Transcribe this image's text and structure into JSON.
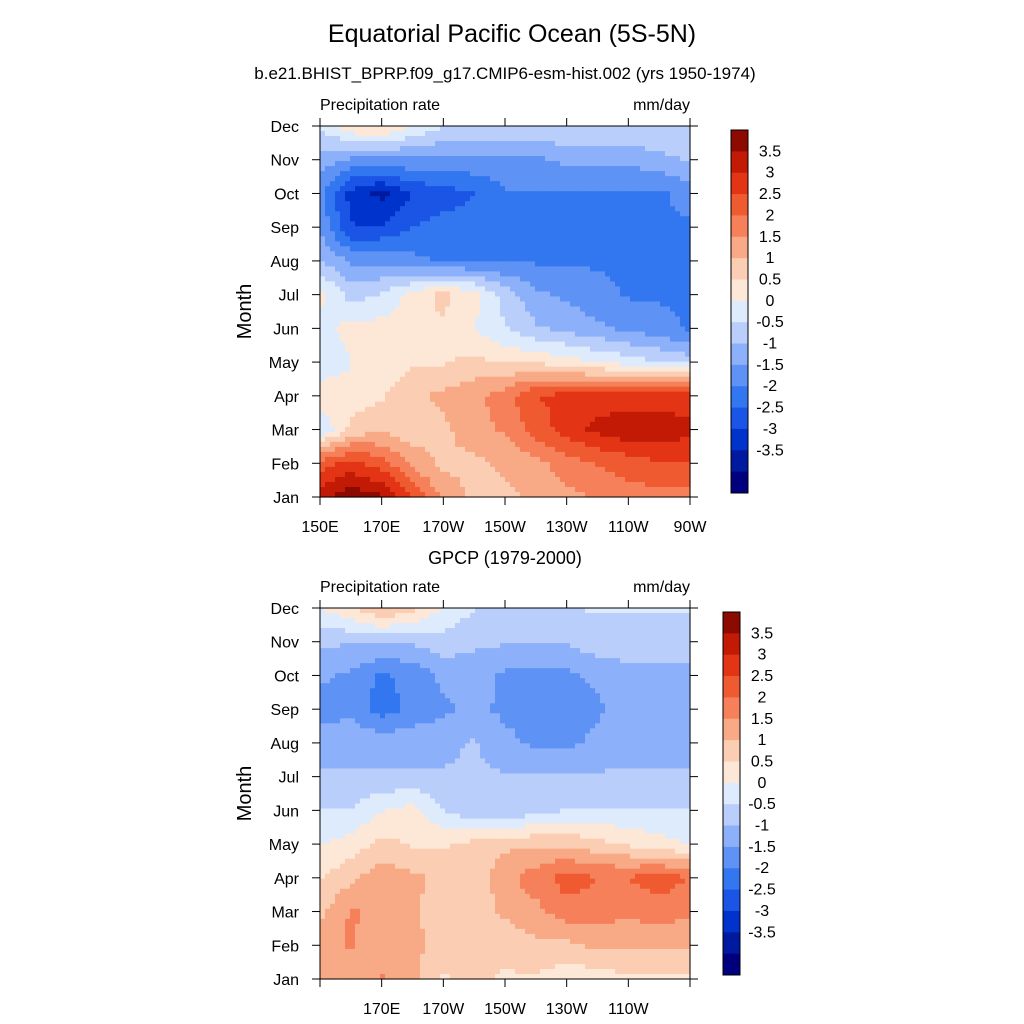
{
  "title": "Equatorial Pacific Ocean (5S-5N)",
  "chart_data": [
    {
      "type": "heatmap",
      "title": "b.e21.BHIST_BPRP.f09_g17.CMIP6-esm-hist.002 (yrs 1950-1974)",
      "variable_label": "Precipitation rate",
      "units_label": "mm/day",
      "ylabel": "Month",
      "xlabel": "",
      "x_ticks": [
        "150E",
        "170E",
        "170W",
        "150W",
        "130W",
        "110W",
        "90W"
      ],
      "y_ticks": [
        "Jan",
        "Feb",
        "Mar",
        "Apr",
        "May",
        "Jun",
        "Jul",
        "Aug",
        "Sep",
        "Oct",
        "Nov",
        "Dec"
      ],
      "colorbar_labels": [
        "3.5",
        "3",
        "2.5",
        "2",
        "1.5",
        "1",
        "0.5",
        "0",
        "-0.5",
        "-1",
        "-1.5",
        "-2",
        "-2.5",
        "-3",
        "-3.5"
      ],
      "x": [
        150,
        160,
        170,
        180,
        190,
        200,
        210,
        220,
        230,
        240,
        250,
        260,
        270
      ],
      "values": [
        [
          3.2,
          3.6,
          3.4,
          2.4,
          1.4,
          1.0,
          1.0,
          1.2,
          1.4,
          1.6,
          1.8,
          1.8,
          1.8
        ],
        [
          2.2,
          2.6,
          2.2,
          1.4,
          1.0,
          1.0,
          1.2,
          1.4,
          1.8,
          2.0,
          2.2,
          2.4,
          2.4
        ],
        [
          -0.2,
          0.8,
          1.0,
          0.8,
          1.0,
          1.4,
          1.6,
          2.2,
          2.6,
          3.0,
          3.2,
          3.2,
          3.0
        ],
        [
          0.6,
          0.4,
          0.6,
          1.0,
          1.2,
          1.4,
          1.8,
          2.4,
          2.6,
          2.6,
          2.6,
          2.6,
          2.6
        ],
        [
          -0.2,
          0.2,
          0.4,
          0.6,
          0.6,
          0.8,
          0.6,
          0.6,
          0.4,
          0.2,
          0.0,
          -0.2,
          -0.4
        ],
        [
          0.0,
          0.4,
          0.4,
          0.6,
          0.6,
          0.2,
          -0.2,
          -0.6,
          -0.8,
          -1.0,
          -1.2,
          -1.4,
          -1.6
        ],
        [
          0.4,
          -0.4,
          -0.2,
          0.4,
          0.8,
          0.4,
          -0.4,
          -1.0,
          -1.2,
          -1.4,
          -1.6,
          -1.6,
          -1.6
        ],
        [
          -0.6,
          -1.2,
          -1.2,
          -1.4,
          -1.6,
          -1.6,
          -1.6,
          -1.6,
          -1.6,
          -1.6,
          -1.6,
          -1.6,
          -1.6
        ],
        [
          -1.2,
          -2.4,
          -2.4,
          -2.0,
          -1.8,
          -1.8,
          -1.6,
          -1.6,
          -1.6,
          -1.6,
          -1.6,
          -1.6,
          -1.6
        ],
        [
          -1.4,
          -2.6,
          -3.0,
          -2.4,
          -2.2,
          -2.0,
          -1.6,
          -1.6,
          -1.6,
          -1.6,
          -1.6,
          -1.6,
          -1.4
        ],
        [
          -0.8,
          -1.2,
          -1.2,
          -1.2,
          -1.2,
          -1.2,
          -1.2,
          -1.2,
          -1.0,
          -1.0,
          -1.0,
          -0.8,
          -0.6
        ],
        [
          -0.2,
          0.6,
          0.8,
          0.2,
          -0.2,
          -0.2,
          -0.2,
          -0.2,
          -0.2,
          -0.2,
          -0.2,
          -0.2,
          -0.2
        ]
      ],
      "clim": [
        -3.75,
        3.75
      ],
      "contour_interval": 0.5
    },
    {
      "type": "heatmap",
      "title": "GPCP (1979-2000)",
      "variable_label": "Precipitation rate",
      "units_label": "mm/day",
      "ylabel": "Month",
      "xlabel": "",
      "x_ticks": [
        "170E",
        "170W",
        "150W",
        "130W",
        "110W"
      ],
      "y_ticks": [
        "Jan",
        "Feb",
        "Mar",
        "Apr",
        "May",
        "Jun",
        "Jul",
        "Aug",
        "Sep",
        "Oct",
        "Nov",
        "Dec"
      ],
      "colorbar_labels": [
        "3.5",
        "3",
        "2.5",
        "2",
        "1.5",
        "1",
        "0.5",
        "0",
        "-0.5",
        "-1",
        "-1.5",
        "-2",
        "-2.5",
        "-3",
        "-3.5"
      ],
      "x": [
        150,
        160,
        170,
        180,
        190,
        200,
        210,
        220,
        230,
        240,
        250,
        260,
        270
      ],
      "values": [
        [
          1.2,
          1.2,
          1.6,
          1.2,
          0.6,
          0.8,
          0.6,
          0.6,
          0.4,
          0.4,
          0.6,
          0.6,
          0.6
        ],
        [
          1.4,
          1.6,
          1.2,
          1.2,
          1.0,
          0.8,
          0.8,
          1.0,
          1.0,
          1.2,
          1.2,
          1.2,
          1.2
        ],
        [
          1.0,
          1.6,
          1.4,
          1.2,
          0.8,
          0.8,
          1.2,
          1.4,
          1.8,
          1.8,
          1.6,
          1.8,
          1.6
        ],
        [
          0.6,
          1.0,
          1.4,
          1.2,
          1.0,
          0.8,
          1.4,
          1.8,
          2.2,
          2.0,
          2.0,
          2.2,
          2.0
        ],
        [
          0.2,
          0.4,
          0.8,
          0.6,
          0.6,
          0.8,
          1.0,
          1.0,
          1.0,
          0.8,
          0.6,
          0.4,
          0.2
        ],
        [
          -0.2,
          -0.2,
          0.2,
          0.4,
          -0.2,
          -0.6,
          -0.6,
          -0.4,
          -0.2,
          -0.2,
          -0.2,
          -0.2,
          -0.2
        ],
        [
          -0.6,
          -0.6,
          -0.6,
          -0.6,
          -0.6,
          -0.6,
          -0.6,
          -0.6,
          -0.6,
          -0.6,
          -0.6,
          -0.6,
          -0.6
        ],
        [
          -0.8,
          -0.8,
          -0.8,
          -0.8,
          -0.8,
          -0.6,
          -1.0,
          -1.2,
          -1.2,
          -1.0,
          -0.8,
          -0.8,
          -0.8
        ],
        [
          -1.4,
          -1.2,
          -1.8,
          -1.4,
          -1.2,
          -1.0,
          -1.2,
          -1.2,
          -1.2,
          -1.2,
          -0.8,
          -0.8,
          -1.0
        ],
        [
          -1.0,
          -1.2,
          -1.6,
          -1.4,
          -1.0,
          -0.8,
          -1.2,
          -1.2,
          -1.2,
          -1.0,
          -0.8,
          -0.8,
          -0.8
        ],
        [
          -0.6,
          -0.6,
          -0.6,
          -0.6,
          -0.4,
          -0.6,
          -0.6,
          -0.6,
          -0.6,
          -0.4,
          -0.4,
          -0.4,
          -0.4
        ],
        [
          0.2,
          0.6,
          1.2,
          0.8,
          0.2,
          -0.2,
          -0.2,
          -0.2,
          -0.2,
          -0.2,
          -0.2,
          -0.2,
          -0.2
        ]
      ],
      "clim": [
        -3.75,
        3.75
      ],
      "contour_interval": 0.5
    }
  ],
  "palette": [
    "#00007f",
    "#001a9f",
    "#0033cc",
    "#1a55e6",
    "#3377f0",
    "#5e92f5",
    "#8cb0f9",
    "#b9cefb",
    "#ddebfd",
    "#fde8d8",
    "#fbcdb2",
    "#f8a985",
    "#f6805a",
    "#f05a30",
    "#e33515",
    "#c21a05",
    "#8c0a00"
  ]
}
